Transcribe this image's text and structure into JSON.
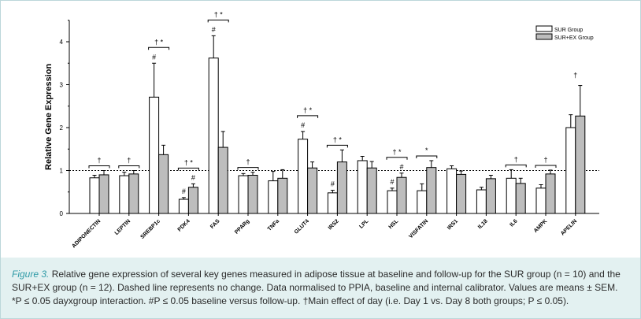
{
  "chart_data": {
    "type": "bar",
    "ylabel": "Relative Gene Expression",
    "ylim": [
      0,
      4.5
    ],
    "yticks": [
      0,
      1,
      2,
      3,
      4
    ],
    "reference_line": 1,
    "categories": [
      "ADIPONECTIN",
      "LEPTIN",
      "SREBP1c",
      "PDK4",
      "FAS",
      "PPARg",
      "TNFa",
      "GLUT4",
      "IRS2",
      "LPL",
      "HSL",
      "VISFATIN",
      "IRS1",
      "IL18",
      "IL6",
      "AMPK",
      "APELIN"
    ],
    "series": [
      {
        "name": "SUR Group",
        "color": "#ffffff",
        "values": [
          0.83,
          0.88,
          2.71,
          0.33,
          3.62,
          0.88,
          0.76,
          1.73,
          0.48,
          1.23,
          0.53,
          0.53,
          1.04,
          0.55,
          0.82,
          0.59,
          2.0
        ],
        "errors": [
          0.06,
          0.08,
          0.79,
          0.04,
          0.52,
          0.05,
          0.22,
          0.18,
          0.06,
          0.1,
          0.06,
          0.16,
          0.07,
          0.06,
          0.2,
          0.08,
          0.3
        ]
      },
      {
        "name": "SUR+EX Group",
        "color": "#bdbdbd",
        "values": [
          0.9,
          0.92,
          1.37,
          0.61,
          1.54,
          0.89,
          0.82,
          1.06,
          1.2,
          1.06,
          0.84,
          1.07,
          0.91,
          0.81,
          0.7,
          0.92,
          2.27
        ],
        "errors": [
          0.1,
          0.08,
          0.22,
          0.08,
          0.37,
          0.07,
          0.2,
          0.14,
          0.28,
          0.15,
          0.1,
          0.16,
          0.08,
          0.08,
          0.12,
          0.09,
          0.71
        ]
      }
    ],
    "annotations": [
      {
        "category": "ADIPONECTIN",
        "group": "†"
      },
      {
        "category": "LEPTIN",
        "group": "†"
      },
      {
        "category": "SREBP1c",
        "group": "† *",
        "sur": "#"
      },
      {
        "category": "PDK4",
        "group": "† *",
        "sur": "#",
        "ex": "#"
      },
      {
        "category": "FAS",
        "group": "† *",
        "sur": "#"
      },
      {
        "category": "PPARg",
        "group": "†"
      },
      {
        "category": "GLUT4",
        "group": "† *",
        "sur": "#"
      },
      {
        "category": "IRS2",
        "group": "† *",
        "sur": "#"
      },
      {
        "category": "HSL",
        "group": "† *",
        "sur": "#",
        "ex": "#"
      },
      {
        "category": "VISFATIN",
        "group": "*"
      },
      {
        "category": "IL6",
        "group": "†"
      },
      {
        "category": "AMPK",
        "group": "†"
      },
      {
        "category": "APELIN",
        "group": "†",
        "bracket": false
      }
    ]
  },
  "caption": {
    "fig_label": "Figure 3.",
    "line1": " Relative gene expression of several key genes measured in adipose tissue at baseline and follow-up for the SUR group (n = 10) and the",
    "line2": "SUR+EX group (n = 12). Dashed line represents no change. Data normalised to PPIA, baseline and internal calibrator. Values are means ± SEM.",
    "line3": "*P ≤ 0.05 dayxgroup interaction. #P ≤ 0.05 baseline versus follow-up. †Main effect of day (i.e. Day 1 vs. Day 8 both groups; P ≤ 0.05)."
  }
}
